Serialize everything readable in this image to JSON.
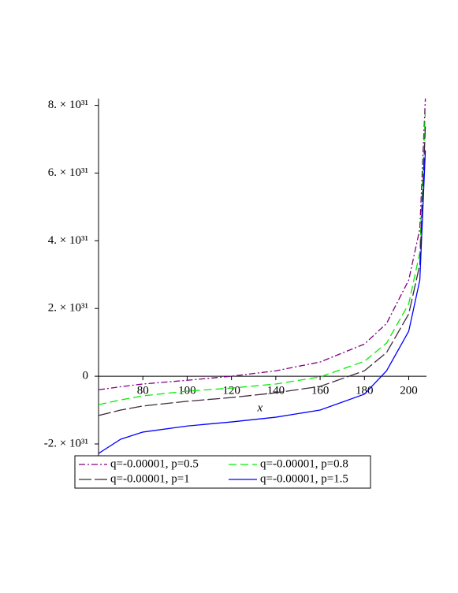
{
  "chart_data": {
    "type": "line",
    "x_label": "x",
    "x": [
      60,
      70,
      80,
      100,
      120,
      140,
      160,
      180,
      190,
      200,
      205,
      207.5
    ],
    "series": [
      {
        "name": "q=-0.00001, p=0.5",
        "color": "#800080",
        "dash": "8,3,2,3",
        "values": [
          -4e+30,
          -3.1e+30,
          -2.3e+30,
          -1.2e+30,
          0,
          1.6e+30,
          4.2e+30,
          9.5e+30,
          1.56e+31,
          2.84e+31,
          4.35e+31,
          8.2e+31
        ]
      },
      {
        "name": "q=-0.00001, p=0.8",
        "color": "#00ee00",
        "dash": "10,5",
        "values": [
          -8.4e+30,
          -7e+30,
          -5.8e+30,
          -4.4e+30,
          -3.5e+30,
          -2.3e+30,
          -2e+29,
          4.4e+30,
          9.8e+30,
          2.14e+31,
          3.65e+31,
          7.84e+31
        ]
      },
      {
        "name": "q=-0.00001, p=1",
        "color": "#3c2a3c",
        "dash": "16,4",
        "values": [
          -1.16e+31,
          -1e+31,
          -8.8e+30,
          -7.4e+30,
          -6.3e+30,
          -4.9e+30,
          -3e+30,
          1.6e+30,
          7e+30,
          1.84e+31,
          3.3e+31,
          7.37e+31
        ]
      },
      {
        "name": "q=-0.00001, p=1.5",
        "color": "#0000ff",
        "dash": "none",
        "values": [
          -2.28e+31,
          -1.86e+31,
          -1.65e+31,
          -1.47e+31,
          -1.35e+31,
          -1.21e+31,
          -1e+31,
          -5.3e+30,
          1.6e+30,
          1.33e+31,
          2.84e+31,
          6.67e+31
        ]
      }
    ],
    "xlim": [
      60,
      208
    ],
    "xticks": [
      80,
      100,
      120,
      140,
      160,
      180,
      200
    ],
    "ylim": [
      -2.35e+31,
      8.2e+31
    ],
    "yticks": [
      {
        "value": -2e+31,
        "label": "-2. × 10³¹"
      },
      {
        "value": 0,
        "label": "0"
      },
      {
        "value": 2e+31,
        "label": "2. × 10³¹"
      },
      {
        "value": 4e+31,
        "label": "4. × 10³¹"
      },
      {
        "value": 6e+31,
        "label": "6. × 10³¹"
      },
      {
        "value": 8e+31,
        "label": "8. × 10³¹"
      }
    ],
    "legend": "bottom"
  }
}
